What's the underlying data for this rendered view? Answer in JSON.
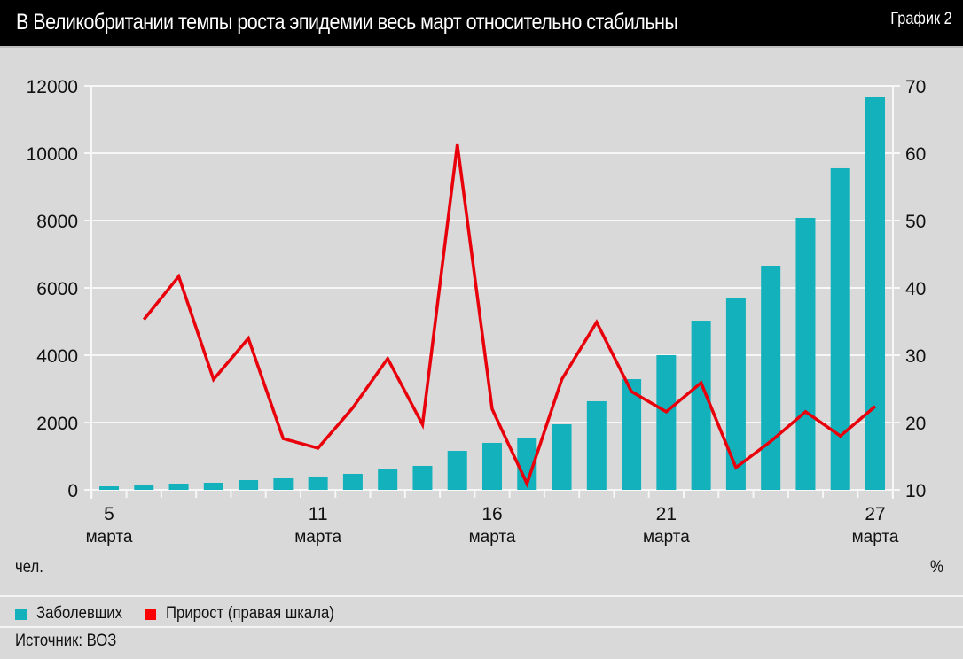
{
  "header": {
    "title": "В Великобритании темпы роста эпидемии весь март относительно стабильны",
    "chart_number": "График 2"
  },
  "units": {
    "left": "чел.",
    "right": "%"
  },
  "legend": [
    {
      "label": "Заболевших",
      "color": "#13b1bb"
    },
    {
      "label": "Прирост (правая шкала)",
      "color": "#e8000b"
    }
  ],
  "source": "Источник: ВОЗ",
  "chart_data": {
    "type": "bar",
    "title": "В Великобритании темпы роста эпидемии весь март относительно стабильны",
    "categories": [
      "5",
      "6",
      "7",
      "8",
      "9",
      "10",
      "11",
      "12",
      "13",
      "14",
      "15",
      "16",
      "17",
      "18",
      "19",
      "20",
      "21",
      "22",
      "23",
      "24",
      "25",
      "26",
      "27"
    ],
    "x_tick_labels": [
      {
        "index": 0,
        "day": "5",
        "month": "марта"
      },
      {
        "index": 6,
        "day": "11",
        "month": "марта"
      },
      {
        "index": 11,
        "day": "16",
        "month": "марта"
      },
      {
        "index": 16,
        "day": "21",
        "month": "марта"
      },
      {
        "index": 22,
        "day": "27",
        "month": "марта"
      }
    ],
    "series": [
      {
        "name": "Заболевших",
        "type": "bar",
        "axis": "left",
        "color": "#13b1bb",
        "values": [
          105,
          132,
          184,
          211,
          289,
          342,
          395,
          474,
          605,
          711,
          1158,
          1395,
          1553,
          1947,
          2632,
          3289,
          4000,
          5026,
          5684,
          6658,
          8079,
          9553,
          11680
        ]
      },
      {
        "name": "Прирост (правая шкала)",
        "type": "line",
        "axis": "right",
        "color": "#e8000b",
        "values": [
          null,
          35.3,
          41.7,
          26.4,
          32.5,
          17.6,
          16.2,
          22.2,
          29.5,
          19.7,
          61.3,
          22.0,
          10.9,
          26.4,
          34.9,
          24.6,
          21.6,
          25.9,
          13.3,
          17.2,
          21.6,
          18.0,
          22.4
        ]
      }
    ],
    "left_axis": {
      "label": "чел.",
      "ylim": [
        0,
        12000
      ],
      "ticks": [
        0,
        2000,
        4000,
        6000,
        8000,
        10000,
        12000
      ]
    },
    "right_axis": {
      "label": "%",
      "ylim": [
        10,
        70
      ],
      "ticks": [
        10,
        20,
        30,
        40,
        50,
        60,
        70
      ]
    },
    "grid": true,
    "legend_position": "bottom-left"
  }
}
